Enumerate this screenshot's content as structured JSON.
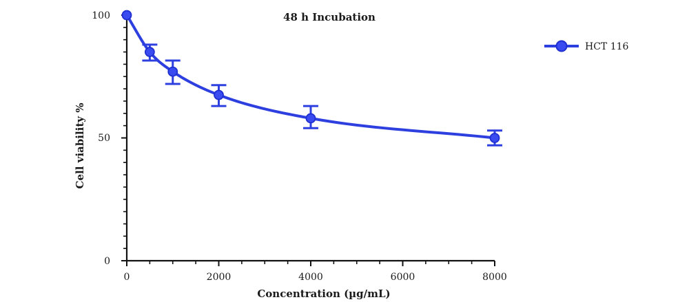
{
  "chart_data": {
    "type": "line",
    "title": "48 h Incubation",
    "xlabel": "Concentration (µg/mL)",
    "ylabel": "Cell viability %",
    "xlim": [
      0,
      8000
    ],
    "ylim": [
      0,
      100
    ],
    "x_ticks": [
      "0",
      "2000",
      "4000",
      "6000",
      "8000"
    ],
    "y_ticks": [
      "0",
      "50",
      "100"
    ],
    "legend_position": "top-right",
    "grid": false,
    "color": "#2e3fe0",
    "series": [
      {
        "name": "HCT 116",
        "x": [
          0,
          500,
          1000,
          2000,
          4000,
          8000
        ],
        "y": [
          100,
          85,
          77,
          67.5,
          58,
          50
        ],
        "error_plus": [
          0,
          3,
          4.5,
          4,
          5,
          3
        ],
        "error_minus": [
          0,
          3.5,
          5,
          4.5,
          4,
          3
        ]
      }
    ]
  }
}
